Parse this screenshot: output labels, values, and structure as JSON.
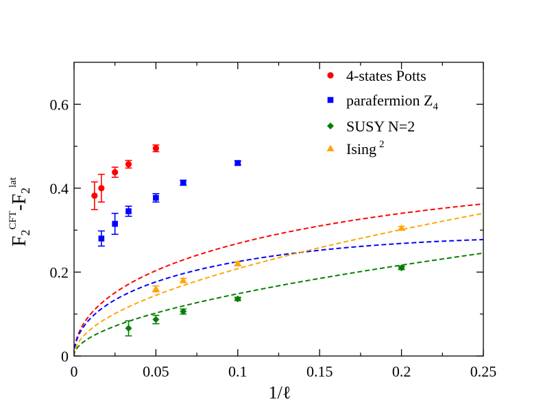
{
  "chart_data": {
    "type": "scatter",
    "xlabel": "1/ℓ",
    "ylabel": {
      "main": "F",
      "sub1": "2",
      "sup1": "CFT",
      "dash": "-F",
      "sub2": "2",
      "sup2": "lat"
    },
    "xlim": [
      0,
      0.25
    ],
    "ylim": [
      0,
      0.7
    ],
    "x_ticks": [
      0,
      0.05,
      0.1,
      0.15,
      0.2,
      0.25
    ],
    "x_tick_labels": [
      "0",
      "0.05",
      "0.1",
      "0.15",
      "0.2",
      "0.25"
    ],
    "y_ticks": [
      0,
      0.2,
      0.4,
      0.6
    ],
    "y_tick_labels": [
      "0",
      "0.2",
      "0.4",
      "0.6"
    ],
    "grid": false,
    "legend_position": "top-right",
    "series": [
      {
        "name": "4-states Potts",
        "name_main": "4-states Potts",
        "name_script": "",
        "marker": "circle",
        "color": "#ff0000",
        "points": [
          {
            "x": 0.0125,
            "y": 0.382,
            "err": 0.033
          },
          {
            "x": 0.0167,
            "y": 0.4,
            "err": 0.033
          },
          {
            "x": 0.025,
            "y": 0.438,
            "err": 0.012
          },
          {
            "x": 0.0333,
            "y": 0.457,
            "err": 0.009
          },
          {
            "x": 0.05,
            "y": 0.495,
            "err": 0.008
          }
        ],
        "fit": {
          "a": 1.06,
          "p": 0.5,
          "b": -0.67,
          "x_end": 0.25
        }
      },
      {
        "name": "parafermion Z4",
        "name_main": "parafermion Z",
        "name_script": "4",
        "marker": "square",
        "color": "#0000ff",
        "points": [
          {
            "x": 0.0167,
            "y": 0.28,
            "err": 0.018
          },
          {
            "x": 0.025,
            "y": 0.315,
            "err": 0.025
          },
          {
            "x": 0.0333,
            "y": 0.345,
            "err": 0.012
          },
          {
            "x": 0.05,
            "y": 0.377,
            "err": 0.01
          },
          {
            "x": 0.0667,
            "y": 0.413,
            "err": 0.006
          },
          {
            "x": 0.1,
            "y": 0.46,
            "err": 0.005
          }
        ],
        "fit": {
          "a": 0.98,
          "p": 0.5,
          "b": -0.85,
          "x_end": 0.25
        }
      },
      {
        "name": "SUSY N=2",
        "name_main": "SUSY N=2",
        "name_script": "",
        "marker": "diamond",
        "color": "#008000",
        "points": [
          {
            "x": 0.0333,
            "y": 0.066,
            "err": 0.018
          },
          {
            "x": 0.05,
            "y": 0.087,
            "err": 0.01
          },
          {
            "x": 0.0667,
            "y": 0.106,
            "err": 0.006
          },
          {
            "x": 0.1,
            "y": 0.136,
            "err": 0.004
          },
          {
            "x": 0.2,
            "y": 0.21,
            "err": 0.004
          }
        ],
        "fit": {
          "a": 0.432,
          "p": 0.5,
          "b": 0.117,
          "x_end": 0.25
        }
      },
      {
        "name": "Ising 2",
        "name_main": "Ising",
        "name_script": "2",
        "marker": "triangle",
        "color": "#ffa500",
        "points": [
          {
            "x": 0.05,
            "y": 0.16,
            "err": 0.007
          },
          {
            "x": 0.0667,
            "y": 0.18,
            "err": 0.005
          },
          {
            "x": 0.1,
            "y": 0.22,
            "err": 0.004
          },
          {
            "x": 0.2,
            "y": 0.305,
            "err": 0.004
          }
        ],
        "fit": {
          "a": 0.62,
          "p": 0.5,
          "b": 0.12,
          "c": 0.0,
          "x_end": 0.25
        }
      }
    ]
  }
}
